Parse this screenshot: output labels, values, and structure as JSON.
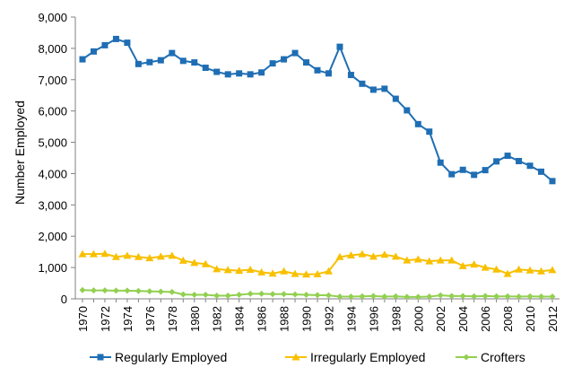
{
  "chart_data": {
    "type": "line",
    "title": "",
    "xlabel": "",
    "ylabel": "Number Employed",
    "ylim": [
      0,
      9000
    ],
    "yticks": [
      0,
      1000,
      2000,
      3000,
      4000,
      5000,
      6000,
      7000,
      8000,
      9000
    ],
    "ytick_labels": [
      "0",
      "1,000",
      "2,000",
      "3,000",
      "4,000",
      "5,000",
      "6,000",
      "7,000",
      "8,000",
      "9,000"
    ],
    "x": [
      1970,
      1971,
      1972,
      1973,
      1974,
      1975,
      1976,
      1977,
      1978,
      1979,
      1980,
      1981,
      1982,
      1983,
      1984,
      1985,
      1986,
      1987,
      1988,
      1989,
      1990,
      1991,
      1992,
      1993,
      1994,
      1995,
      1996,
      1997,
      1998,
      1999,
      2000,
      2001,
      2002,
      2003,
      2004,
      2005,
      2006,
      2007,
      2008,
      2009,
      2010,
      2011,
      2012
    ],
    "xtick_labels": [
      "1970",
      "1972",
      "1974",
      "1976",
      "1978",
      "1980",
      "1982",
      "1984",
      "1986",
      "1988",
      "1990",
      "1992",
      "1994",
      "1996",
      "1998",
      "2000",
      "2002",
      "2004",
      "2006",
      "2008",
      "2010",
      "2012"
    ],
    "grid": false,
    "legend_position": "bottom",
    "series": [
      {
        "name": "Regularly Employed",
        "color": "#1F6EB4",
        "marker": "square",
        "values": [
          7650,
          7900,
          8100,
          8300,
          8180,
          7500,
          7560,
          7620,
          7850,
          7600,
          7550,
          7380,
          7250,
          7170,
          7200,
          7170,
          7230,
          7520,
          7650,
          7850,
          7550,
          7300,
          7200,
          8050,
          7150,
          6870,
          6680,
          6710,
          6390,
          6020,
          5580,
          5340,
          4350,
          3980,
          4120,
          3960,
          4110,
          4390,
          4570,
          4400,
          4250,
          4060,
          3760
        ]
      },
      {
        "name": "Irregularly Employed",
        "color": "#F8C000",
        "marker": "triangle",
        "values": [
          1430,
          1430,
          1440,
          1340,
          1380,
          1340,
          1300,
          1350,
          1380,
          1220,
          1150,
          1110,
          950,
          920,
          900,
          930,
          850,
          810,
          880,
          800,
          780,
          790,
          880,
          1340,
          1390,
          1430,
          1350,
          1410,
          1350,
          1230,
          1260,
          1200,
          1230,
          1230,
          1050,
          1100,
          1000,
          940,
          800,
          940,
          910,
          880,
          920
        ]
      },
      {
        "name": "Crofters",
        "color": "#92D050",
        "marker": "diamond",
        "values": [
          280,
          270,
          270,
          260,
          260,
          250,
          240,
          230,
          220,
          140,
          130,
          130,
          100,
          100,
          130,
          160,
          160,
          150,
          150,
          140,
          130,
          120,
          110,
          70,
          70,
          80,
          90,
          70,
          80,
          60,
          60,
          70,
          110,
          90,
          90,
          80,
          90,
          80,
          80,
          70,
          80,
          70,
          70
        ]
      }
    ]
  }
}
